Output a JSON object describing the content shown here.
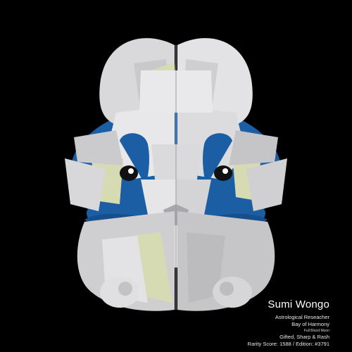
{
  "character": {
    "name": "Sumi Wongo",
    "occupation": "Astrological Reseacher",
    "location": "Bay of Harmony",
    "moon": "Full Blood Moon",
    "traits": "Gifted, Sharp & Rash",
    "rarity_line": "Rarity Score: 1588 / Edition: #3791"
  },
  "palette": {
    "background": "#000000",
    "fur_light": "#e6e6e6",
    "fur_mid": "#cfcfd1",
    "fur_dark": "#b9b9bc",
    "accent_blue": "#1b5ea3",
    "accent_yellow": "#d6dbb3"
  }
}
